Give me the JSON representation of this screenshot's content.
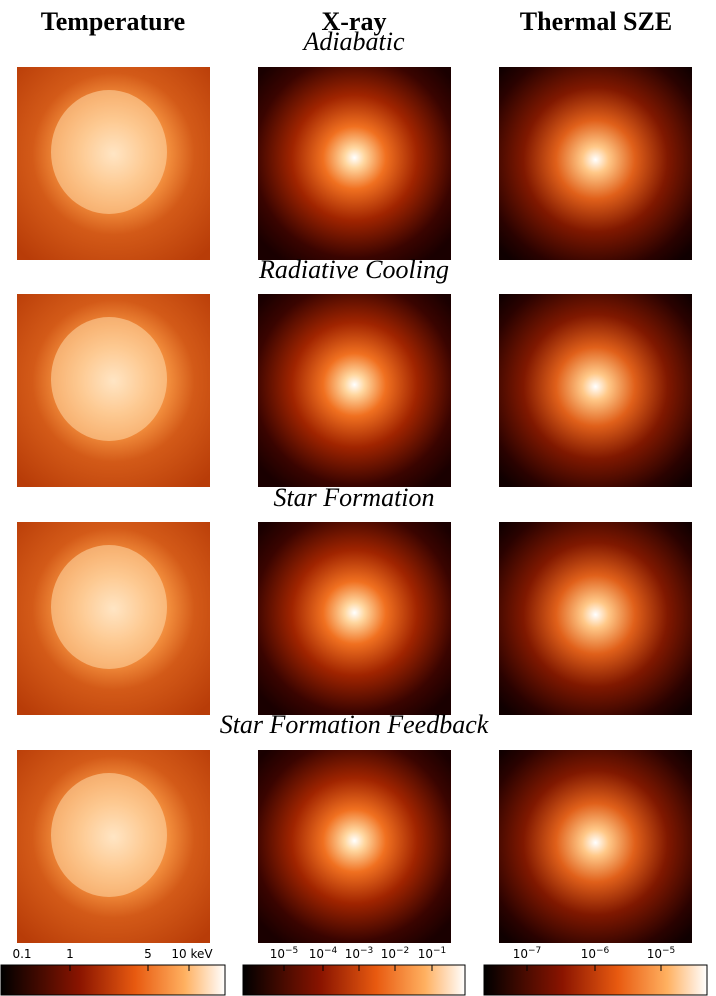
{
  "columns": [
    "Temperature",
    "X-ray",
    "Thermal SZE"
  ],
  "rows": [
    "Adiabatic",
    "Radiative Cooling",
    "Star Formation",
    "Star Formation Feedback"
  ],
  "colorbars": [
    {
      "ticks": [
        {
          "base": "0.1"
        },
        {
          "base": "1"
        },
        {
          "base": "5"
        },
        {
          "base": "10 keV"
        }
      ]
    },
    {
      "ticks": [
        {
          "base": "10",
          "exp": "−5"
        },
        {
          "base": "10",
          "exp": "−4"
        },
        {
          "base": "10",
          "exp": "−3"
        },
        {
          "base": "10",
          "exp": "−2"
        },
        {
          "base": "10",
          "exp": "−1"
        }
      ]
    },
    {
      "ticks": [
        {
          "base": "10",
          "exp": "−7"
        },
        {
          "base": "10",
          "exp": "−6"
        },
        {
          "base": "10",
          "exp": "−5"
        }
      ]
    }
  ]
}
